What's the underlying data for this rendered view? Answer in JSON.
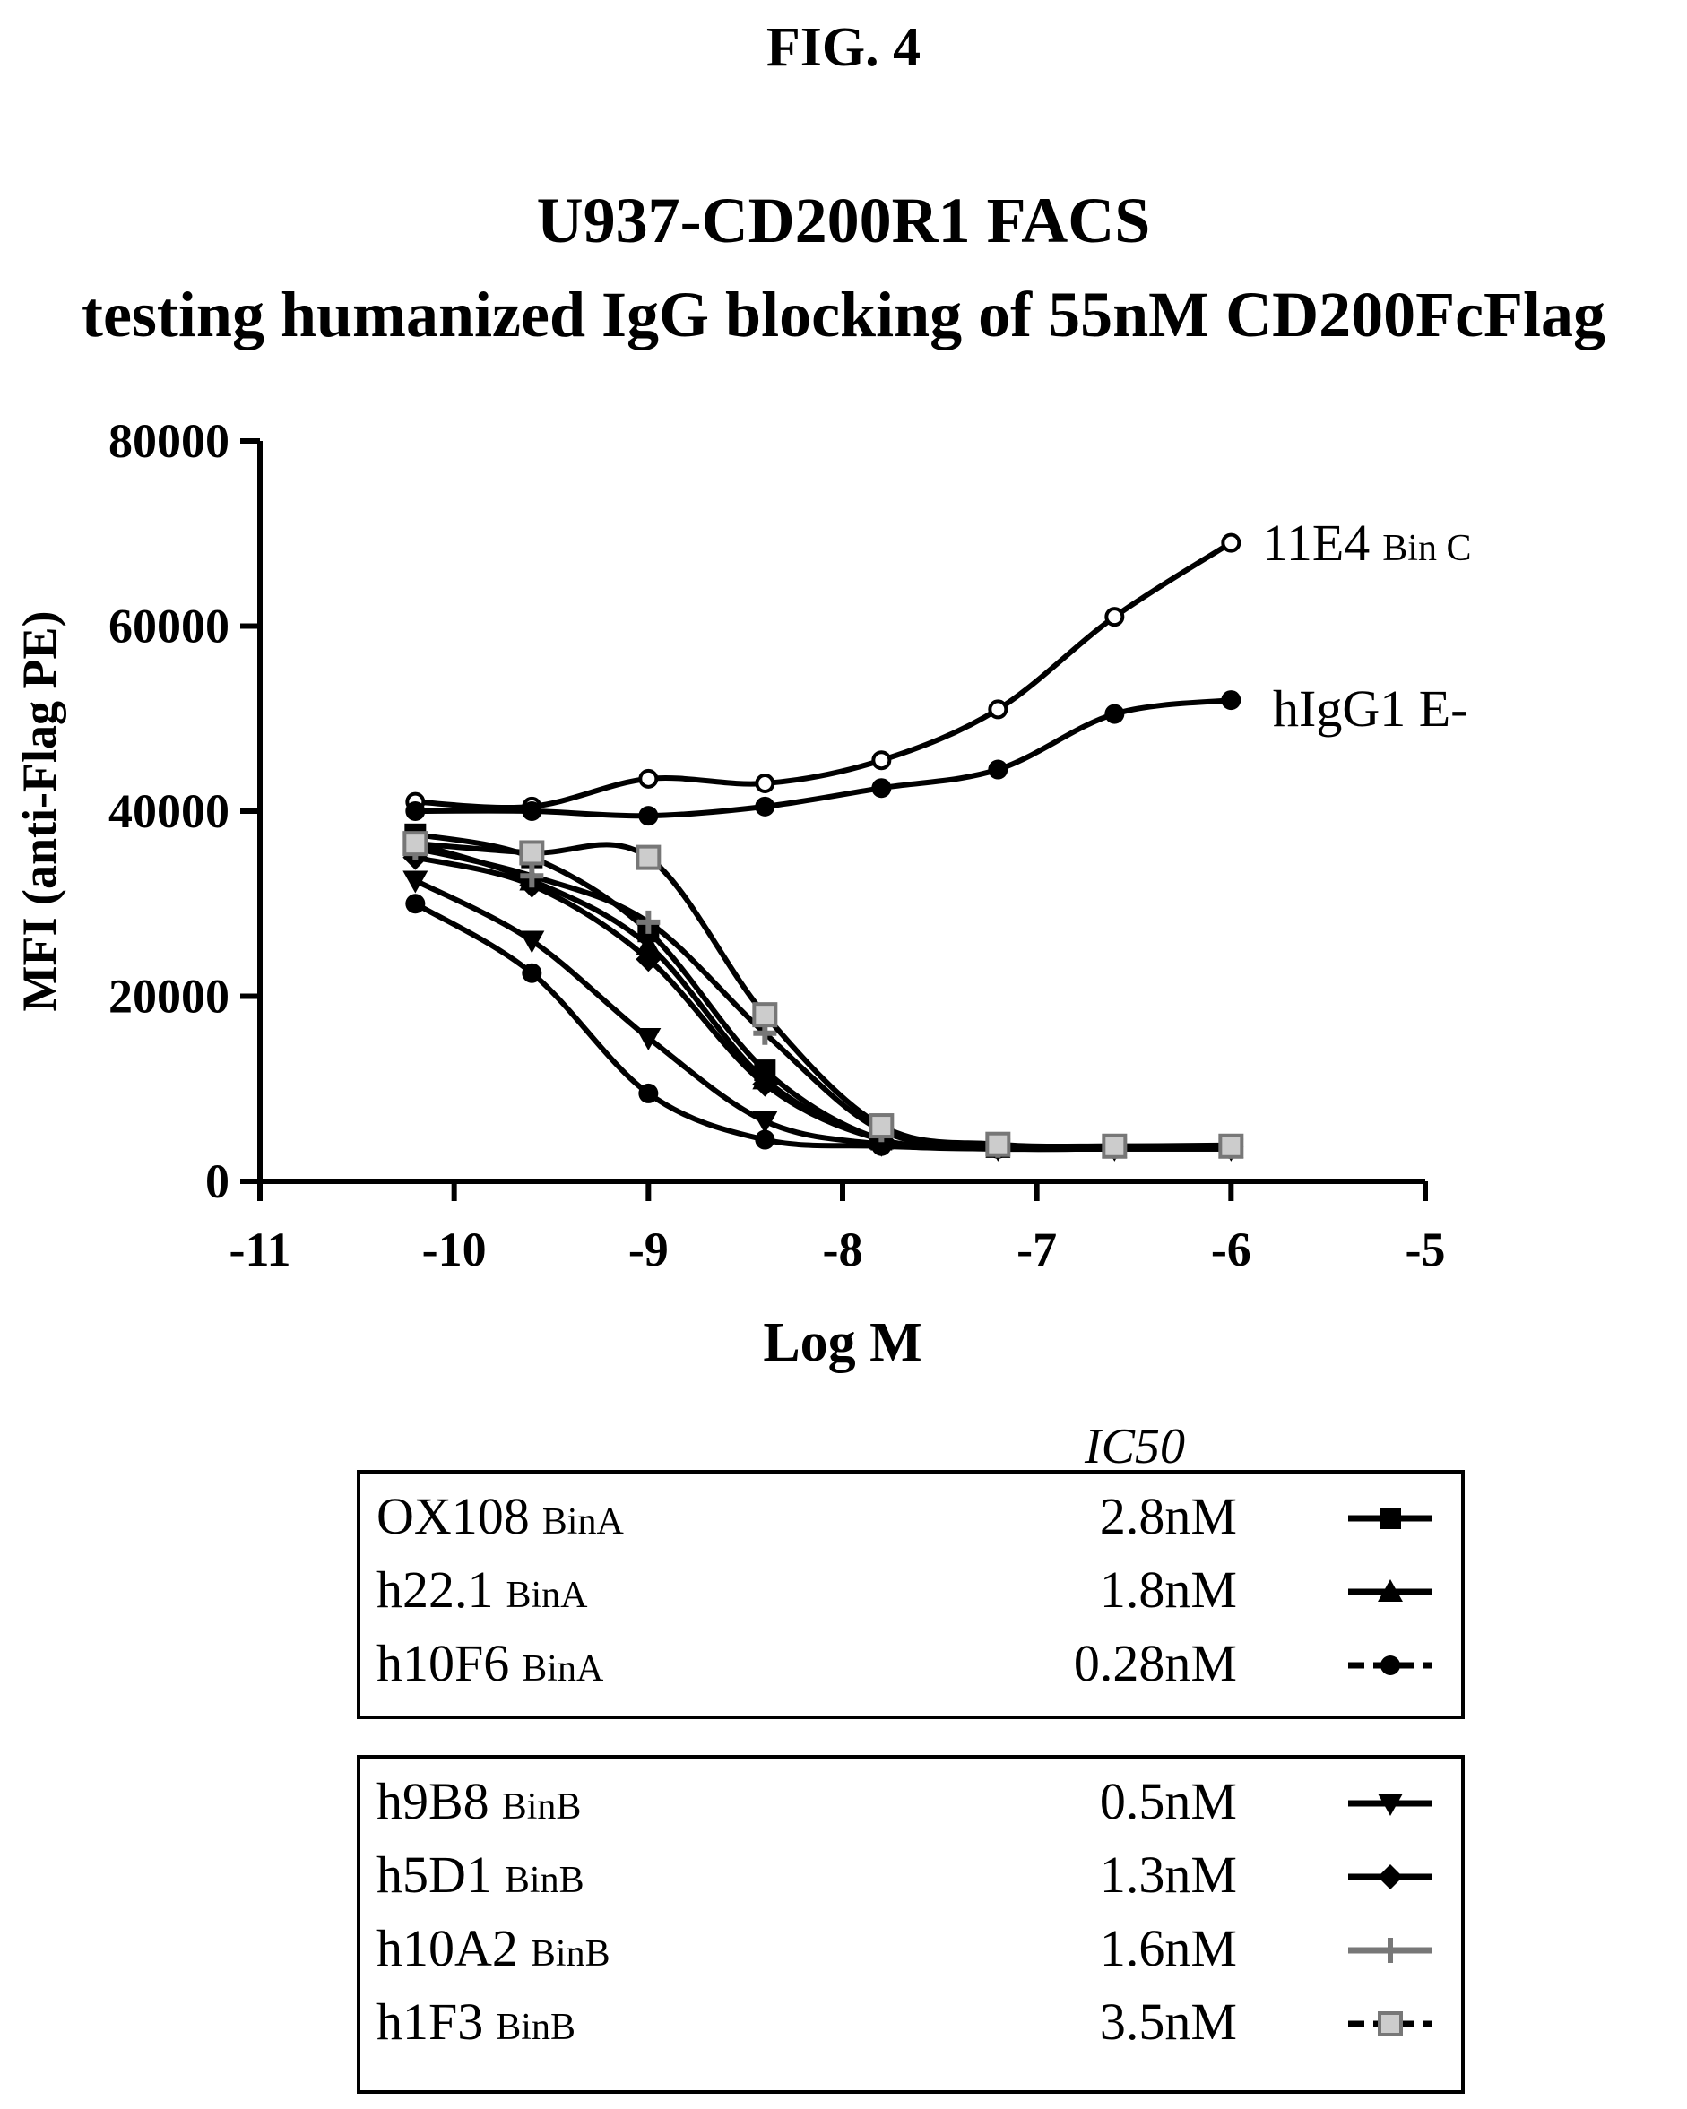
{
  "figure_label": "FIG. 4",
  "chart_data": {
    "type": "line",
    "title": "U937-CD200R1 FACS",
    "subtitle": "testing humanized IgG blocking of 55nM CD200FcFlag",
    "xlabel": "Log M",
    "ylabel": "MFI (anti-Flag PE)",
    "xlim": [
      -11,
      -5
    ],
    "ylim": [
      0,
      80000
    ],
    "xticks": [
      -11,
      -10,
      -9,
      -8,
      -7,
      -6,
      -5
    ],
    "yticks": [
      0,
      20000,
      40000,
      60000,
      80000
    ],
    "x": [
      -10.2,
      -9.6,
      -9.0,
      -8.4,
      -7.8,
      -7.2,
      -6.6,
      -6.0
    ],
    "series": [
      {
        "name": "11E4",
        "bin": "Bin C",
        "marker": "open-circle",
        "values": [
          41000,
          40500,
          43500,
          43000,
          45500,
          51000,
          61000,
          69000
        ]
      },
      {
        "name": "hIgG1 E-",
        "bin": "",
        "marker": "filled-circle",
        "values": [
          40000,
          40000,
          39500,
          40500,
          42500,
          44500,
          50500,
          52000
        ]
      },
      {
        "name": "OX108",
        "bin": "BinA",
        "ic50": "2.8nM",
        "marker": "square",
        "values": [
          37500,
          35000,
          27000,
          12000,
          4500,
          3800,
          3800,
          3900
        ]
      },
      {
        "name": "h22.1",
        "bin": "BinA",
        "ic50": "1.8nM",
        "marker": "triangle",
        "values": [
          36500,
          32500,
          25500,
          11000,
          4500,
          3600,
          3600,
          3600
        ]
      },
      {
        "name": "h10F6",
        "bin": "BinA",
        "ic50": "0.28nM",
        "marker": "dot",
        "values": [
          30000,
          22500,
          9500,
          4500,
          3800,
          3500,
          3500,
          3500
        ]
      },
      {
        "name": "h9B8",
        "bin": "BinB",
        "ic50": "0.5nM",
        "marker": "inv-triangle",
        "values": [
          32500,
          26000,
          15500,
          6500,
          4000,
          3500,
          3500,
          3500
        ]
      },
      {
        "name": "h5D1",
        "bin": "BinB",
        "ic50": "1.3nM",
        "marker": "diamond",
        "values": [
          35000,
          32000,
          24000,
          10500,
          4500,
          3800,
          3700,
          3700
        ]
      },
      {
        "name": "h10A2",
        "bin": "BinB",
        "ic50": "1.6nM",
        "marker": "plus",
        "values": [
          36000,
          33000,
          28000,
          16000,
          5500,
          3800,
          3700,
          3700
        ]
      },
      {
        "name": "h1F3",
        "bin": "BinB",
        "ic50": "3.5nM",
        "marker": "open-square",
        "values": [
          36500,
          35500,
          35000,
          18000,
          6000,
          4000,
          3800,
          3800
        ]
      }
    ],
    "legend_header": "IC50",
    "curve_labels": [
      {
        "name": "11E4",
        "bin": "Bin C"
      },
      {
        "name": "hIgG1 E-",
        "bin": ""
      }
    ]
  },
  "legend_groups": [
    {
      "rows": [
        {
          "name": "OX108",
          "bin": "BinA",
          "ic50": "2.8nM"
        },
        {
          "name": "h22.1",
          "bin": "BinA",
          "ic50": "1.8nM"
        },
        {
          "name": "h10F6",
          "bin": "BinA",
          "ic50": "0.28nM"
        }
      ]
    },
    {
      "rows": [
        {
          "name": "h9B8",
          "bin": "BinB",
          "ic50": "0.5nM"
        },
        {
          "name": "h5D1",
          "bin": "BinB",
          "ic50": "1.3nM"
        },
        {
          "name": "h10A2",
          "bin": "BinB",
          "ic50": "1.6nM"
        },
        {
          "name": "h1F3",
          "bin": "BinB",
          "ic50": "3.5nM"
        }
      ]
    }
  ]
}
